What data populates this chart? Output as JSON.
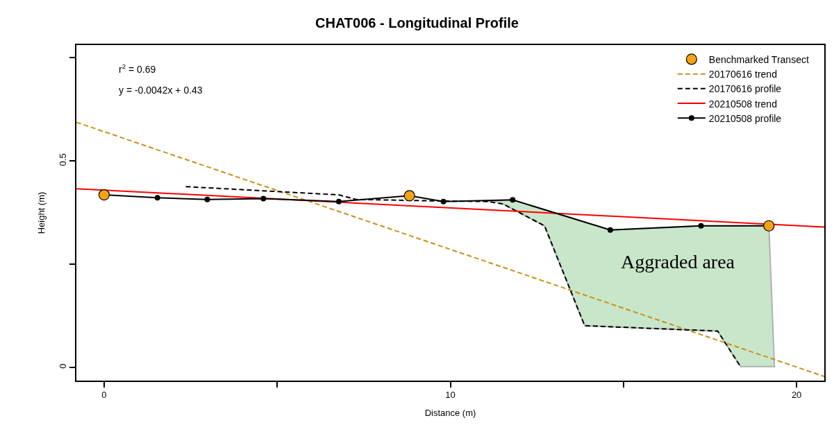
{
  "chart_data": {
    "type": "line",
    "title": "CHAT006 - Longitudinal Profile",
    "xlabel": "Distance (m)",
    "ylabel": "Height (m)",
    "xlim": [
      -0.8,
      20.8
    ],
    "ylim": [
      -0.032,
      0.781
    ],
    "xticks": [
      0,
      {
        "value": 5,
        "label": null
      },
      10,
      {
        "value": 15,
        "label": null
      },
      20
    ],
    "yticks": [
      0,
      {
        "value": 0.25,
        "label": null
      },
      0.5,
      {
        "value": 0.75,
        "label": null
      }
    ],
    "legend": "top right",
    "series": [
      {
        "type": "area",
        "color": "#c8e6c9",
        "x": [
          11.08,
          11.8,
          14.62,
          17.24,
          19.2,
          19.36,
          18.38,
          17.72,
          13.88,
          12.72,
          11.52
        ],
        "values": [
          0.402,
          0.406,
          0.333,
          0.343,
          0.343,
          0.002,
          0.002,
          0.088,
          0.101,
          0.343,
          0.396
        ]
      },
      {
        "type": "scatter",
        "name": "Benchmarked Transect",
        "color": "#f5a316",
        "marker": "circle",
        "x": [
          0,
          8.82,
          19.2
        ],
        "values": [
          0.418,
          0.416,
          0.343
        ]
      },
      {
        "name": "20170616 trend",
        "color": "#c8901a",
        "line_style": "dashed",
        "x": [
          -0.8,
          20.8
        ],
        "values": [
          0.594,
          -0.022
        ]
      },
      {
        "name": "20170616 profile",
        "color": "#000000",
        "line_style": "dashed",
        "x": [
          2.36,
          6.78,
          7.28,
          9.8,
          11.08,
          11.52,
          12.72,
          13.88,
          17.72,
          18.38
        ],
        "values": [
          0.438,
          0.418,
          0.407,
          0.403,
          0.402,
          0.396,
          0.343,
          0.101,
          0.088,
          0.002
        ]
      },
      {
        "name": "20210508 trend",
        "color": "#ff0000",
        "line_style": "solid",
        "x": [
          -0.8,
          20.8
        ],
        "values": [
          0.433,
          0.34
        ]
      },
      {
        "name": "20210508 profile",
        "color": "#000000",
        "line_style": "solid",
        "marker": "circle",
        "x": [
          0,
          1.54,
          2.98,
          4.6,
          6.78,
          8.82,
          9.8,
          11.8,
          14.62,
          17.24,
          19.2
        ],
        "values": [
          0.418,
          0.411,
          0.407,
          0.409,
          0.402,
          0.416,
          0.402,
          0.406,
          0.333,
          0.343,
          0.343
        ]
      }
    ],
    "annotations": [
      "r$^{2}$ = 0.69",
      "y = -0.0042x + 0.43",
      "Aggraded area"
    ]
  }
}
